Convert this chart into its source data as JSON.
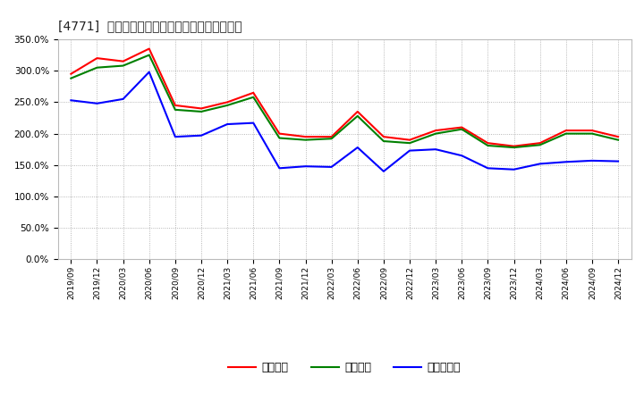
{
  "title": "[4771]  流動比率、当座比率、現預金比率の推移",
  "x_labels": [
    "2019/09",
    "2019/12",
    "2020/03",
    "2020/06",
    "2020/09",
    "2020/12",
    "2021/03",
    "2021/06",
    "2021/09",
    "2021/12",
    "2022/03",
    "2022/06",
    "2022/09",
    "2022/12",
    "2023/03",
    "2023/06",
    "2023/09",
    "2023/12",
    "2024/03",
    "2024/06",
    "2024/09",
    "2024/12"
  ],
  "ryudo": [
    295,
    320,
    315,
    335,
    245,
    240,
    250,
    265,
    200,
    195,
    195,
    235,
    195,
    190,
    205,
    210,
    185,
    180,
    185,
    205,
    205,
    195
  ],
  "toza": [
    288,
    305,
    308,
    325,
    238,
    235,
    245,
    258,
    193,
    190,
    192,
    228,
    188,
    185,
    200,
    207,
    181,
    178,
    182,
    200,
    200,
    190
  ],
  "genkin": [
    253,
    248,
    255,
    298,
    195,
    197,
    215,
    217,
    145,
    148,
    147,
    178,
    140,
    173,
    175,
    165,
    145,
    143,
    152,
    155,
    157,
    156
  ],
  "ryudo_color": "#ff0000",
  "toza_color": "#008000",
  "genkin_color": "#0000ff",
  "bg_color": "#ffffff",
  "plot_bg_color": "#ffffff",
  "grid_color": "#999999",
  "ylim": [
    0,
    350
  ],
  "yticks": [
    0,
    50,
    100,
    150,
    200,
    250,
    300,
    350
  ],
  "legend_labels": [
    "流動比率",
    "当座比率",
    "現預金比率"
  ]
}
